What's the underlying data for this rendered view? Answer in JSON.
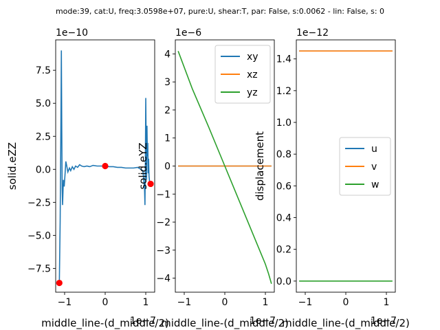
{
  "suptitle": "mode:39, cat:U, freq:3.0598e+07, pure:U, shear:T, par: False, s:0.0062 - lin: False, s: 0",
  "chart_data": [
    {
      "type": "line",
      "offset_text": "1e−10",
      "scale": 1e-10,
      "xlabel": "middle_line-(d_middle/2)",
      "ylabel": "solid.eZZ",
      "x_offset_text": "1e−7",
      "xlim": [
        -1.22,
        1.22
      ],
      "ylim": [
        -9.3,
        9.8
      ],
      "xticks": [
        {
          "v": -1,
          "label": "−1"
        },
        {
          "v": 0,
          "label": "0"
        },
        {
          "v": 1,
          "label": "1"
        }
      ],
      "yticks": [
        {
          "v": -7.5,
          "label": "−7.5"
        },
        {
          "v": -5,
          "label": "−5.0"
        },
        {
          "v": -2.5,
          "label": "−2.5"
        },
        {
          "v": 0,
          "label": "0.0"
        },
        {
          "v": 2.5,
          "label": "2.5"
        },
        {
          "v": 5,
          "label": "5.0"
        },
        {
          "v": 7.5,
          "label": "7.5"
        }
      ],
      "series": [
        {
          "color": "#1f77b4",
          "points": [
            [
              -1.13,
              -8.6
            ],
            [
              -1.11,
              -4.0
            ],
            [
              -1.1,
              0.0
            ],
            [
              -1.09,
              4.0
            ],
            [
              -1.08,
              9.0
            ],
            [
              -1.07,
              3.0
            ],
            [
              -1.06,
              -1.5
            ],
            [
              -1.05,
              -2.7
            ],
            [
              -1.03,
              -0.8
            ],
            [
              -1.01,
              -1.3
            ],
            [
              -0.99,
              -0.4
            ],
            [
              -0.97,
              0.6
            ],
            [
              -0.95,
              0.3
            ],
            [
              -0.92,
              -0.2
            ],
            [
              -0.88,
              0.1
            ],
            [
              -0.85,
              -0.1
            ],
            [
              -0.81,
              0.2
            ],
            [
              -0.77,
              0.0
            ],
            [
              -0.73,
              0.25
            ],
            [
              -0.68,
              0.15
            ],
            [
              -0.63,
              0.35
            ],
            [
              -0.58,
              0.25
            ],
            [
              -0.52,
              0.2
            ],
            [
              -0.45,
              0.25
            ],
            [
              -0.38,
              0.2
            ],
            [
              -0.3,
              0.3
            ],
            [
              -0.2,
              0.25
            ],
            [
              -0.1,
              0.25
            ],
            [
              0.0,
              0.25
            ],
            [
              0.1,
              0.2
            ],
            [
              0.2,
              0.2
            ],
            [
              0.3,
              0.15
            ],
            [
              0.4,
              0.15
            ],
            [
              0.5,
              0.1
            ],
            [
              0.6,
              0.1
            ],
            [
              0.7,
              0.1
            ],
            [
              0.8,
              0.15
            ],
            [
              0.88,
              0.0
            ],
            [
              0.93,
              -0.1
            ],
            [
              0.97,
              -1.5
            ],
            [
              0.98,
              -2.7
            ],
            [
              0.99,
              0.5
            ],
            [
              1.0,
              5.4
            ],
            [
              1.01,
              2.0
            ],
            [
              1.02,
              -0.8
            ],
            [
              1.03,
              3.3
            ],
            [
              1.04,
              1.0
            ],
            [
              1.05,
              2.0
            ],
            [
              1.06,
              -0.3
            ],
            [
              1.07,
              0.8
            ],
            [
              1.08,
              -0.5
            ],
            [
              1.1,
              -1.1
            ],
            [
              1.12,
              -1.1
            ]
          ]
        }
      ],
      "markers": [
        [
          -1.13,
          -8.6
        ],
        [
          0.0,
          0.25
        ],
        [
          1.12,
          -1.1
        ]
      ],
      "marker_color": "#ff0000"
    },
    {
      "type": "line",
      "offset_text": "1e−6",
      "scale": 1e-06,
      "xlabel": "middle_line-(d_middle/2)",
      "ylabel": "solid.eYZ",
      "x_offset_text": "1e−7",
      "xlim": [
        -1.22,
        1.22
      ],
      "ylim": [
        -4.5,
        4.5
      ],
      "xticks": [
        {
          "v": -1,
          "label": "−1"
        },
        {
          "v": 0,
          "label": "0"
        },
        {
          "v": 1,
          "label": "1"
        }
      ],
      "yticks": [
        {
          "v": -4,
          "label": "−4"
        },
        {
          "v": -3,
          "label": "−3"
        },
        {
          "v": -2,
          "label": "−2"
        },
        {
          "v": -1,
          "label": "−1"
        },
        {
          "v": 0,
          "label": "0"
        },
        {
          "v": 1,
          "label": "1"
        },
        {
          "v": 2,
          "label": "2"
        },
        {
          "v": 3,
          "label": "3"
        },
        {
          "v": 4,
          "label": "4"
        }
      ],
      "legend": "top-right",
      "series": [
        {
          "name": "xy",
          "color": "#1f77b4",
          "points": [
            [
              -1.15,
              0.0
            ],
            [
              1.15,
              0.0
            ]
          ]
        },
        {
          "name": "xz",
          "color": "#ff7f0e",
          "points": [
            [
              -1.15,
              0.0
            ],
            [
              1.15,
              0.0
            ]
          ]
        },
        {
          "name": "yz",
          "color": "#2ca02c",
          "points": [
            [
              -1.15,
              4.1
            ],
            [
              -0.8,
              2.75
            ],
            [
              -0.4,
              1.4
            ],
            [
              0.0,
              0.0
            ],
            [
              0.4,
              -1.4
            ],
            [
              0.8,
              -2.8
            ],
            [
              1.0,
              -3.5
            ],
            [
              1.08,
              -3.85
            ],
            [
              1.15,
              -4.2
            ]
          ]
        }
      ]
    },
    {
      "type": "line",
      "offset_text": "1e−12",
      "scale": 1e-12,
      "xlabel": "middle_line-(d_middle/2)",
      "ylabel": "displacement",
      "x_offset_text": "1e−7",
      "xlim": [
        -1.22,
        1.22
      ],
      "ylim": [
        -0.07,
        1.52
      ],
      "xticks": [
        {
          "v": -1,
          "label": "−1"
        },
        {
          "v": 0,
          "label": "0"
        },
        {
          "v": 1,
          "label": "1"
        }
      ],
      "yticks": [
        {
          "v": 0,
          "label": "0.0"
        },
        {
          "v": 0.2,
          "label": "0.2"
        },
        {
          "v": 0.4,
          "label": "0.4"
        },
        {
          "v": 0.6,
          "label": "0.6"
        },
        {
          "v": 0.8,
          "label": "0.8"
        },
        {
          "v": 1.0,
          "label": "1.0"
        },
        {
          "v": 1.2,
          "label": "1.2"
        },
        {
          "v": 1.4,
          "label": "1.4"
        }
      ],
      "legend": "center-right",
      "series": [
        {
          "name": "u",
          "color": "#1f77b4",
          "points": [
            [
              -1.15,
              1.45
            ],
            [
              1.15,
              1.45
            ]
          ]
        },
        {
          "name": "v",
          "color": "#ff7f0e",
          "points": [
            [
              -1.15,
              1.45
            ],
            [
              1.15,
              1.45
            ]
          ]
        },
        {
          "name": "w",
          "color": "#2ca02c",
          "points": [
            [
              -1.15,
              0.0
            ],
            [
              1.15,
              0.0
            ]
          ]
        }
      ]
    }
  ]
}
